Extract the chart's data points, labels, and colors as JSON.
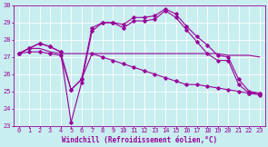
{
  "xlabel": "Windchill (Refroidissement éolien,°C)",
  "bg_color": "#c8eef0",
  "line_color": "#990099",
  "grid_color": "#ffffff",
  "xlim": [
    -0.5,
    23.5
  ],
  "ylim": [
    23,
    30
  ],
  "yticks": [
    23,
    24,
    25,
    26,
    27,
    28,
    29,
    30
  ],
  "xticks": [
    0,
    1,
    2,
    3,
    4,
    5,
    6,
    7,
    8,
    9,
    10,
    11,
    12,
    13,
    14,
    15,
    16,
    17,
    18,
    19,
    20,
    21,
    22,
    23
  ],
  "line1_x": [
    0,
    1,
    2,
    3,
    4,
    5,
    6,
    7,
    8,
    9,
    10,
    11,
    12,
    13,
    14,
    15,
    16,
    17,
    18,
    19,
    20,
    21,
    22,
    23
  ],
  "line1_y": [
    27.2,
    27.5,
    27.5,
    27.3,
    27.2,
    27.2,
    27.2,
    27.2,
    27.2,
    27.2,
    27.2,
    27.2,
    27.2,
    27.2,
    27.2,
    27.2,
    27.2,
    27.2,
    27.2,
    27.2,
    27.1,
    27.1,
    27.1,
    27.0
  ],
  "line2_x": [
    0,
    1,
    2,
    3,
    4,
    5,
    6,
    7,
    8,
    9,
    10,
    11,
    12,
    13,
    14,
    15,
    16,
    17,
    18,
    19,
    20,
    21,
    22,
    23
  ],
  "line2_y": [
    27.2,
    27.5,
    27.8,
    27.6,
    27.3,
    25.1,
    25.7,
    28.7,
    29.0,
    29.0,
    28.9,
    29.3,
    29.3,
    29.4,
    29.8,
    29.5,
    28.8,
    28.2,
    27.7,
    27.1,
    27.0,
    25.7,
    25.0,
    24.9
  ],
  "line3_x": [
    0,
    1,
    2,
    3,
    4,
    5,
    6,
    7,
    8,
    9,
    10,
    11,
    12,
    13,
    14,
    15,
    16,
    17,
    18,
    19,
    20,
    21,
    22,
    23
  ],
  "line3_y": [
    27.2,
    27.5,
    27.8,
    27.6,
    27.3,
    23.2,
    25.5,
    28.5,
    29.0,
    29.0,
    28.7,
    29.1,
    29.1,
    29.2,
    29.7,
    29.3,
    28.6,
    27.9,
    27.2,
    26.8,
    26.8,
    25.4,
    24.9,
    24.9
  ],
  "line4_x": [
    0,
    1,
    2,
    3,
    4,
    5,
    6,
    7,
    8,
    9,
    10,
    11,
    12,
    13,
    14,
    15,
    16,
    17,
    18,
    19,
    20,
    21,
    22,
    23
  ],
  "line4_y": [
    27.2,
    27.3,
    27.3,
    27.2,
    27.1,
    25.1,
    25.7,
    27.2,
    27.0,
    26.8,
    26.6,
    26.4,
    26.2,
    26.0,
    25.8,
    25.6,
    25.4,
    25.4,
    25.3,
    25.2,
    25.1,
    25.0,
    24.9,
    24.8
  ],
  "tick_fontsize": 5.0,
  "xlabel_fontsize": 5.5
}
